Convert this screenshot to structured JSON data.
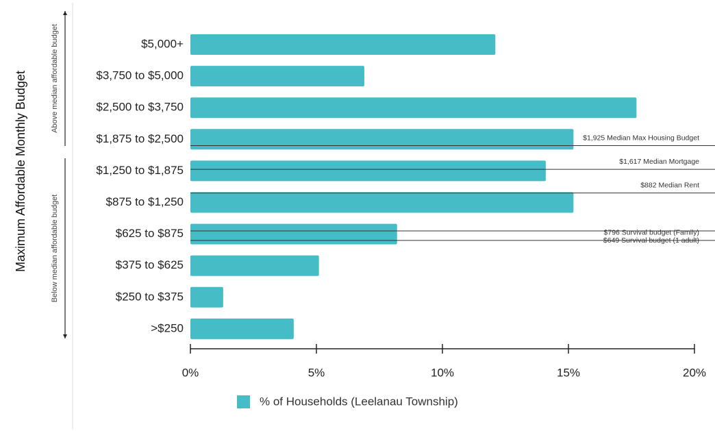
{
  "chart_data": {
    "type": "bar",
    "orientation": "horizontal",
    "ylabel": "Maximum Affordable Monthly Budget",
    "categories": [
      "$5,000+",
      "$3,750 to $5,000",
      "$2,500 to $3,750",
      "$1,875 to $2,500",
      "$1,250 to $1,875",
      "$875 to $1,250",
      "$625 to $875",
      "$375 to $625",
      "$250 to $375",
      ">$250"
    ],
    "series": [
      {
        "name": "% of Households (Leelanau Township)",
        "values": [
          12.1,
          6.9,
          17.7,
          15.2,
          14.1,
          15.2,
          8.2,
          5.1,
          1.3,
          4.1
        ]
      }
    ],
    "xlim": [
      0,
      20
    ],
    "x_ticks": [
      0,
      5,
      10,
      15,
      20
    ],
    "x_tick_labels": [
      "0%",
      "5%",
      "10%",
      "15%",
      "20%"
    ],
    "legend_position": "bottom",
    "groups": [
      {
        "label": "Above median affordable budget",
        "from": "$5,000+",
        "to": "$1,875 to $2,500"
      },
      {
        "label": "Below median affordable budget",
        "from": "$1,250 to $1,875",
        "to": ">$250"
      }
    ],
    "reference_lines": [
      {
        "label": "$1,925 Median Max Housing Budget",
        "category": "$1,875 to $2,500",
        "offset": 0.2
      },
      {
        "label": "$1,617 Median Mortgage",
        "category": "$1,250 to $1,875",
        "offset": -0.05
      },
      {
        "label": "$882 Median Rent",
        "category": "$875 to $1,250",
        "offset": -0.3
      },
      {
        "label": "$796 Survival budget (Family)",
        "category": "$625 to $875",
        "offset": 0.2
      },
      {
        "label": "$649 Survival budget (1 adult)",
        "category": "$625 to $875",
        "offset": -0.1
      }
    ],
    "colors": {
      "bar": "#45bcc6",
      "axis": "#222222",
      "reference_line": "#333333"
    }
  }
}
